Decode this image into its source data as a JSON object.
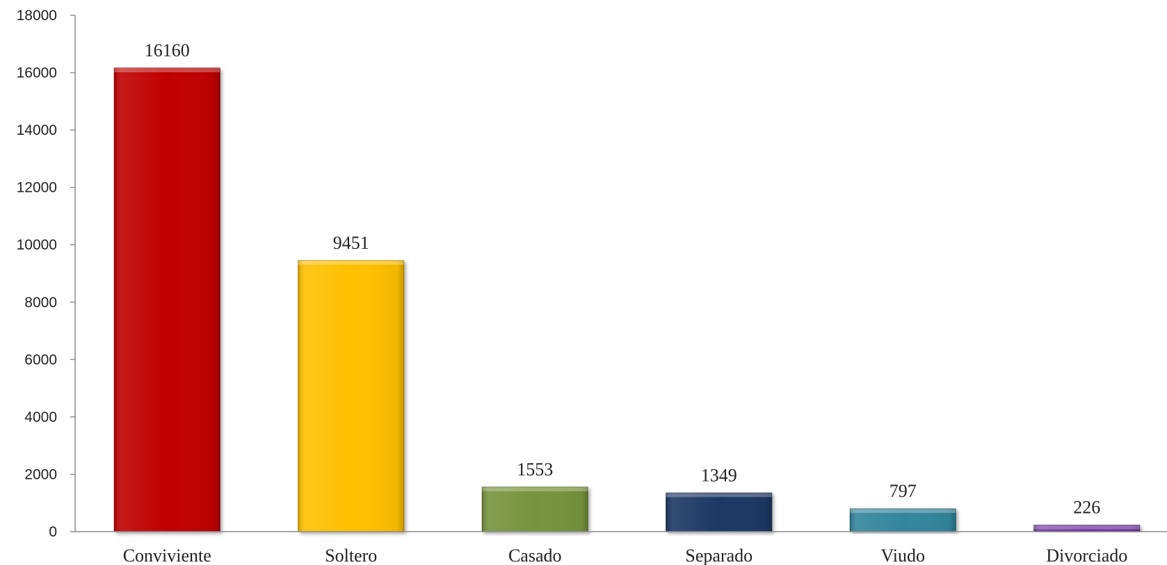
{
  "chart_data": {
    "type": "bar",
    "title": "",
    "xlabel": "",
    "ylabel": "",
    "categories": [
      "Conviviente",
      "Soltero",
      "Casado",
      "Separado",
      "Viudo",
      "Divorciado"
    ],
    "values": [
      16160,
      9451,
      1553,
      1349,
      797,
      226
    ],
    "data_labels": [
      "16160",
      "9451",
      "1553",
      "1349",
      "797",
      "226"
    ],
    "colors": [
      "#c00000",
      "#ffc000",
      "#77933c",
      "#1f3864",
      "#31859c",
      "#7030a0"
    ],
    "ylim": [
      0,
      18000
    ],
    "yticks": [
      0,
      2000,
      4000,
      6000,
      8000,
      10000,
      12000,
      14000,
      16000,
      18000
    ],
    "ytick_labels": [
      "0",
      "2000",
      "4000",
      "6000",
      "8000",
      "10000",
      "12000",
      "14000",
      "16000",
      "18000"
    ],
    "grid": false,
    "legend": "none"
  }
}
